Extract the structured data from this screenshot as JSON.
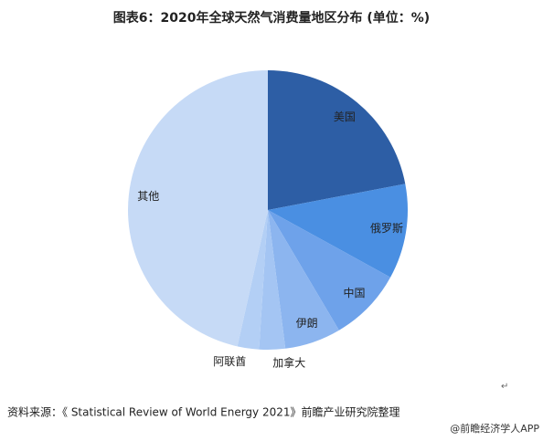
{
  "chart_data": {
    "type": "pie",
    "title": "图表6：2020年全球天然气消费量地区分布 (单位：%)",
    "categories": [
      "美国",
      "俄罗斯",
      "中国",
      "伊朗",
      "加拿大",
      "阿联酋",
      "其他"
    ],
    "values": [
      22,
      11,
      8.5,
      6.5,
      3,
      2.5,
      46.5
    ],
    "colors": [
      "#2d5ea5",
      "#4a8fe2",
      "#6ea2ea",
      "#8cb5ef",
      "#a4c5f3",
      "#b3cff5",
      "#c6daf6"
    ],
    "source": "资料来源：《 Statistical Review of World Energy 2021》前瞻产业研究院整理",
    "annotations": [
      "↵",
      "@前瞻经济学人APP"
    ]
  }
}
